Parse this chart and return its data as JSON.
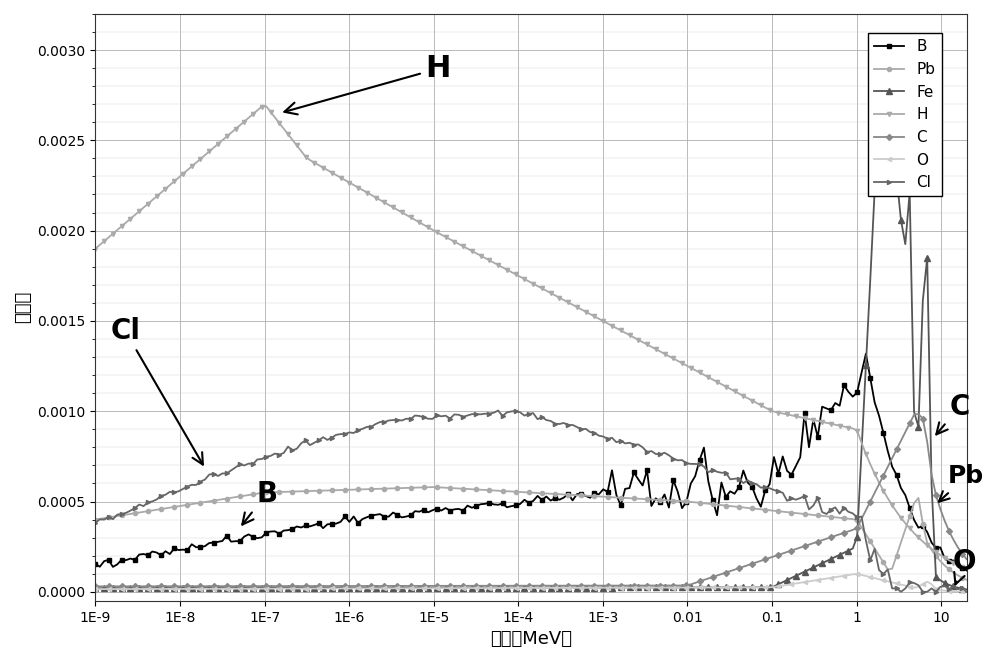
{
  "title": "",
  "xlabel": "能量（MeV）",
  "ylabel": "响应值",
  "background_color": "#ffffff",
  "series": {
    "B": {
      "color": "#000000",
      "marker": "s",
      "markersize": 3,
      "linewidth": 1.3,
      "markevery": 3
    },
    "Pb": {
      "color": "#aaaaaa",
      "marker": "o",
      "markersize": 3,
      "linewidth": 1.3,
      "markevery": 3
    },
    "Fe": {
      "color": "#555555",
      "marker": "^",
      "markersize": 4,
      "linewidth": 1.3,
      "markevery": 2
    },
    "H": {
      "color": "#aaaaaa",
      "marker": "v",
      "markersize": 3,
      "linewidth": 1.3,
      "markevery": 2
    },
    "C": {
      "color": "#888888",
      "marker": "D",
      "markersize": 3,
      "linewidth": 1.3,
      "markevery": 3
    },
    "O": {
      "color": "#cccccc",
      "marker": "<",
      "markersize": 3,
      "linewidth": 1.3,
      "markevery": 3
    },
    "Cl": {
      "color": "#666666",
      "marker": ">",
      "markersize": 3,
      "linewidth": 1.3,
      "markevery": 3
    }
  },
  "legend_order": [
    "B",
    "Pb",
    "Fe",
    "H",
    "C",
    "O",
    "Cl"
  ],
  "yticks": [
    0.0,
    0.0005,
    0.001,
    0.0015,
    0.002,
    0.0025,
    0.003
  ],
  "xtick_labels": [
    "1E-9",
    "1E-8",
    "1E-7",
    "1E-6",
    "1E-5",
    "1E-4",
    "1E-3",
    "0.01",
    "0.1",
    "1",
    "10"
  ]
}
